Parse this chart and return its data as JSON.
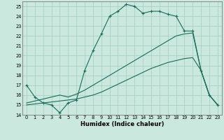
{
  "title": "",
  "xlabel": "Humidex (Indice chaleur)",
  "xlim": [
    -0.5,
    23.5
  ],
  "ylim": [
    14,
    25.5
  ],
  "yticks": [
    14,
    15,
    16,
    17,
    18,
    19,
    20,
    21,
    22,
    23,
    24,
    25
  ],
  "xticks": [
    0,
    1,
    2,
    3,
    4,
    5,
    6,
    7,
    8,
    9,
    10,
    11,
    12,
    13,
    14,
    15,
    16,
    17,
    18,
    19,
    20,
    21,
    22,
    23
  ],
  "bg_color": "#cbe8de",
  "line_color": "#1a6b5a",
  "grid_color": "#a0ccc0",
  "line1_x": [
    0,
    1,
    2,
    3,
    4,
    5,
    6,
    7,
    8,
    9,
    10,
    11,
    12,
    13,
    14,
    15,
    16,
    17,
    18,
    19,
    20,
    21,
    22,
    23
  ],
  "line1_y": [
    17.0,
    15.8,
    15.2,
    15.0,
    14.2,
    15.2,
    15.5,
    18.5,
    20.5,
    22.2,
    24.0,
    24.5,
    25.2,
    25.0,
    24.3,
    24.5,
    24.5,
    24.2,
    24.0,
    22.5,
    22.5,
    18.5,
    16.0,
    15.0
  ],
  "line2_x": [
    0,
    1,
    2,
    3,
    4,
    5,
    6,
    7,
    8,
    9,
    10,
    11,
    12,
    13,
    14,
    15,
    16,
    17,
    18,
    19,
    20,
    21,
    22,
    23
  ],
  "line2_y": [
    15.0,
    15.1,
    15.2,
    15.3,
    15.4,
    15.5,
    15.6,
    15.8,
    16.0,
    16.3,
    16.7,
    17.1,
    17.5,
    17.9,
    18.3,
    18.7,
    19.0,
    19.3,
    19.5,
    19.7,
    19.8,
    18.5,
    16.0,
    15.0
  ],
  "line3_x": [
    0,
    1,
    2,
    3,
    4,
    5,
    6,
    7,
    8,
    9,
    10,
    11,
    12,
    13,
    14,
    15,
    16,
    17,
    18,
    19,
    20,
    21,
    22,
    23
  ],
  "line3_y": [
    15.2,
    15.4,
    15.6,
    15.8,
    16.0,
    15.8,
    16.1,
    16.5,
    17.0,
    17.5,
    18.0,
    18.5,
    19.0,
    19.5,
    20.0,
    20.5,
    21.0,
    21.5,
    22.0,
    22.2,
    22.3,
    18.5,
    16.0,
    15.0
  ]
}
